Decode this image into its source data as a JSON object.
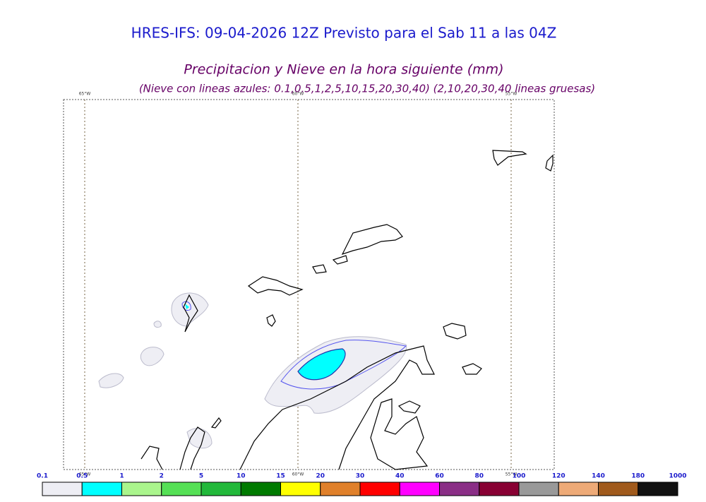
{
  "header": {
    "title": "HRES-IFS: 09-04-2026 12Z Previsto para el Sab 11 a las 04Z"
  },
  "map": {
    "title": "Precipitacion y Nieve en la hora siguiente (mm)",
    "subtitle": "(Nieve con lineas azules: 0.1,0.5,1,2,5,10,15,20,30,40)  (2,10,20,30,40 lineas gruesas)",
    "lon_labels": [
      "65°W",
      "60°W",
      "55°W"
    ]
  },
  "legend": {
    "labels": [
      0.1,
      0.5,
      1,
      2,
      5,
      10,
      15,
      20,
      30,
      40,
      60,
      80,
      100,
      120,
      140,
      180,
      1000
    ],
    "colors": [
      "#eeeef4",
      "#00ffff",
      "#aaf58c",
      "#55e055",
      "#22b83a",
      "#007a00",
      "#ffff00",
      "#e0802a",
      "#ff0000",
      "#ff00ff",
      "#8a2e86",
      "#880033",
      "#999999",
      "#eeaa77",
      "#a05a1c",
      "#111111"
    ]
  }
}
